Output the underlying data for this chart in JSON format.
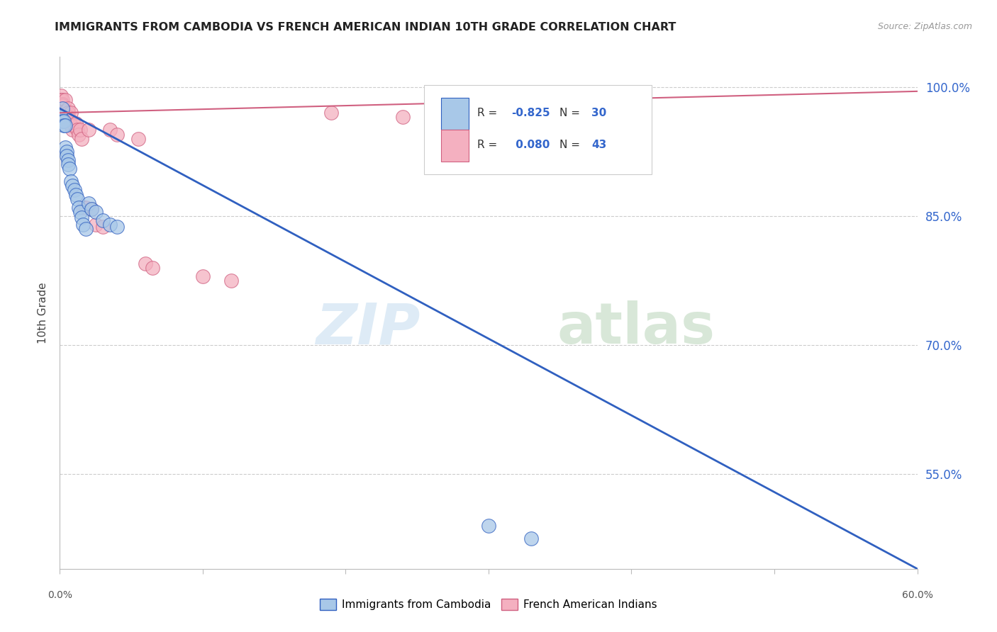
{
  "title": "IMMIGRANTS FROM CAMBODIA VS FRENCH AMERICAN INDIAN 10TH GRADE CORRELATION CHART",
  "source": "Source: ZipAtlas.com",
  "ylabel": "10th Grade",
  "xlim": [
    0.0,
    0.6
  ],
  "ylim": [
    0.44,
    1.035
  ],
  "y_ticks": [
    0.55,
    0.7,
    0.85,
    1.0
  ],
  "y_tick_labels": [
    "55.0%",
    "70.0%",
    "85.0%",
    "100.0%"
  ],
  "blue_R": -0.825,
  "blue_N": 30,
  "pink_R": 0.08,
  "pink_N": 43,
  "blue_color": "#a8c8e8",
  "pink_color": "#f4b0c0",
  "line_blue": "#3060c0",
  "line_pink": "#d06080",
  "legend_text_color": "#3366cc",
  "blue_points_x": [
    0.001,
    0.002,
    0.002,
    0.003,
    0.003,
    0.004,
    0.004,
    0.005,
    0.005,
    0.006,
    0.006,
    0.007,
    0.008,
    0.009,
    0.01,
    0.011,
    0.012,
    0.013,
    0.014,
    0.015,
    0.016,
    0.018,
    0.02,
    0.022,
    0.025,
    0.03,
    0.035,
    0.04,
    0.3,
    0.33
  ],
  "blue_points_y": [
    0.965,
    0.975,
    0.96,
    0.96,
    0.955,
    0.955,
    0.93,
    0.925,
    0.92,
    0.915,
    0.91,
    0.905,
    0.89,
    0.885,
    0.88,
    0.875,
    0.87,
    0.86,
    0.855,
    0.848,
    0.84,
    0.835,
    0.865,
    0.858,
    0.855,
    0.845,
    0.84,
    0.838,
    0.49,
    0.475
  ],
  "pink_points_x": [
    0.001,
    0.001,
    0.002,
    0.002,
    0.002,
    0.003,
    0.003,
    0.003,
    0.004,
    0.004,
    0.004,
    0.005,
    0.005,
    0.006,
    0.006,
    0.006,
    0.007,
    0.007,
    0.008,
    0.008,
    0.009,
    0.01,
    0.011,
    0.012,
    0.013,
    0.014,
    0.015,
    0.016,
    0.018,
    0.02,
    0.022,
    0.025,
    0.03,
    0.035,
    0.04,
    0.055,
    0.06,
    0.065,
    0.1,
    0.12,
    0.19,
    0.24,
    0.29
  ],
  "pink_points_y": [
    0.99,
    0.985,
    0.985,
    0.98,
    0.978,
    0.975,
    0.972,
    0.968,
    0.985,
    0.972,
    0.968,
    0.965,
    0.96,
    0.975,
    0.97,
    0.965,
    0.962,
    0.958,
    0.97,
    0.955,
    0.95,
    0.955,
    0.958,
    0.95,
    0.945,
    0.95,
    0.94,
    0.86,
    0.86,
    0.95,
    0.858,
    0.84,
    0.838,
    0.95,
    0.945,
    0.94,
    0.795,
    0.79,
    0.78,
    0.775,
    0.97,
    0.965,
    0.96
  ],
  "blue_line_x0": 0.0,
  "blue_line_y0": 0.975,
  "blue_line_x1": 0.6,
  "blue_line_y1": 0.44,
  "pink_line_x0": 0.0,
  "pink_line_y0": 0.97,
  "pink_line_x1": 0.6,
  "pink_line_y1": 0.995
}
